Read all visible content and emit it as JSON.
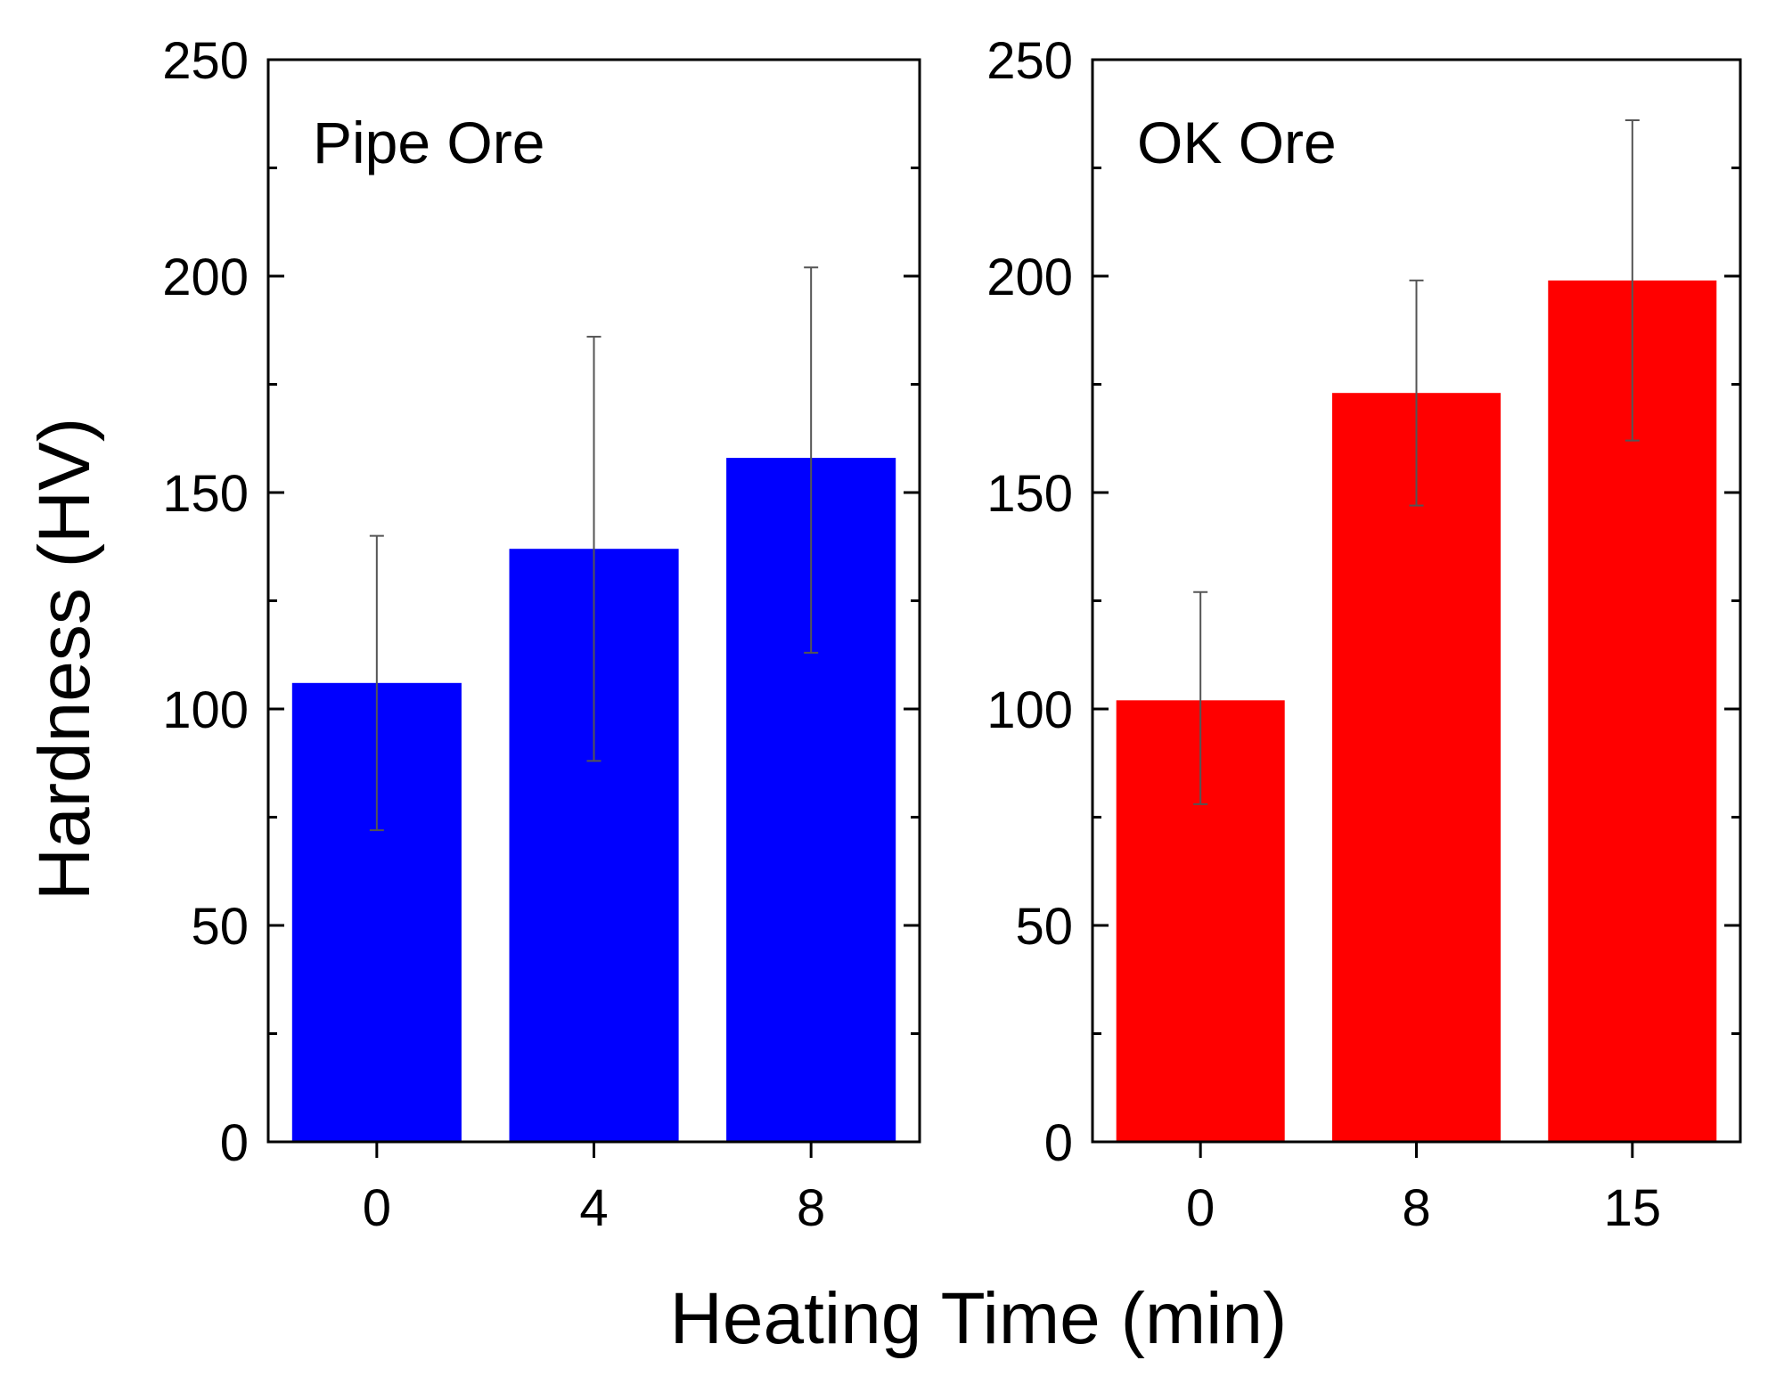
{
  "chart_data": {
    "type": "bar",
    "xlabel": "Heating Time (min)",
    "ylabel": "Hardness (HV)",
    "panels": [
      {
        "title": "Pipe Ore",
        "categories": [
          "0",
          "4",
          "8"
        ],
        "values": [
          106,
          137,
          158
        ],
        "error_low": [
          72,
          88,
          113
        ],
        "error_high": [
          140,
          186,
          202
        ],
        "ylim": [
          0,
          250
        ],
        "yticks": [
          "0",
          "50",
          "100",
          "150",
          "200",
          "250"
        ],
        "color": "#0000ff"
      },
      {
        "title": "OK Ore",
        "categories": [
          "0",
          "8",
          "15"
        ],
        "values": [
          102,
          173,
          199
        ],
        "error_low": [
          78,
          147,
          162
        ],
        "error_high": [
          127,
          199,
          236
        ],
        "ylim": [
          0,
          250
        ],
        "yticks": [
          "0",
          "50",
          "100",
          "150",
          "200",
          "250"
        ],
        "color": "#ff0000"
      }
    ]
  }
}
